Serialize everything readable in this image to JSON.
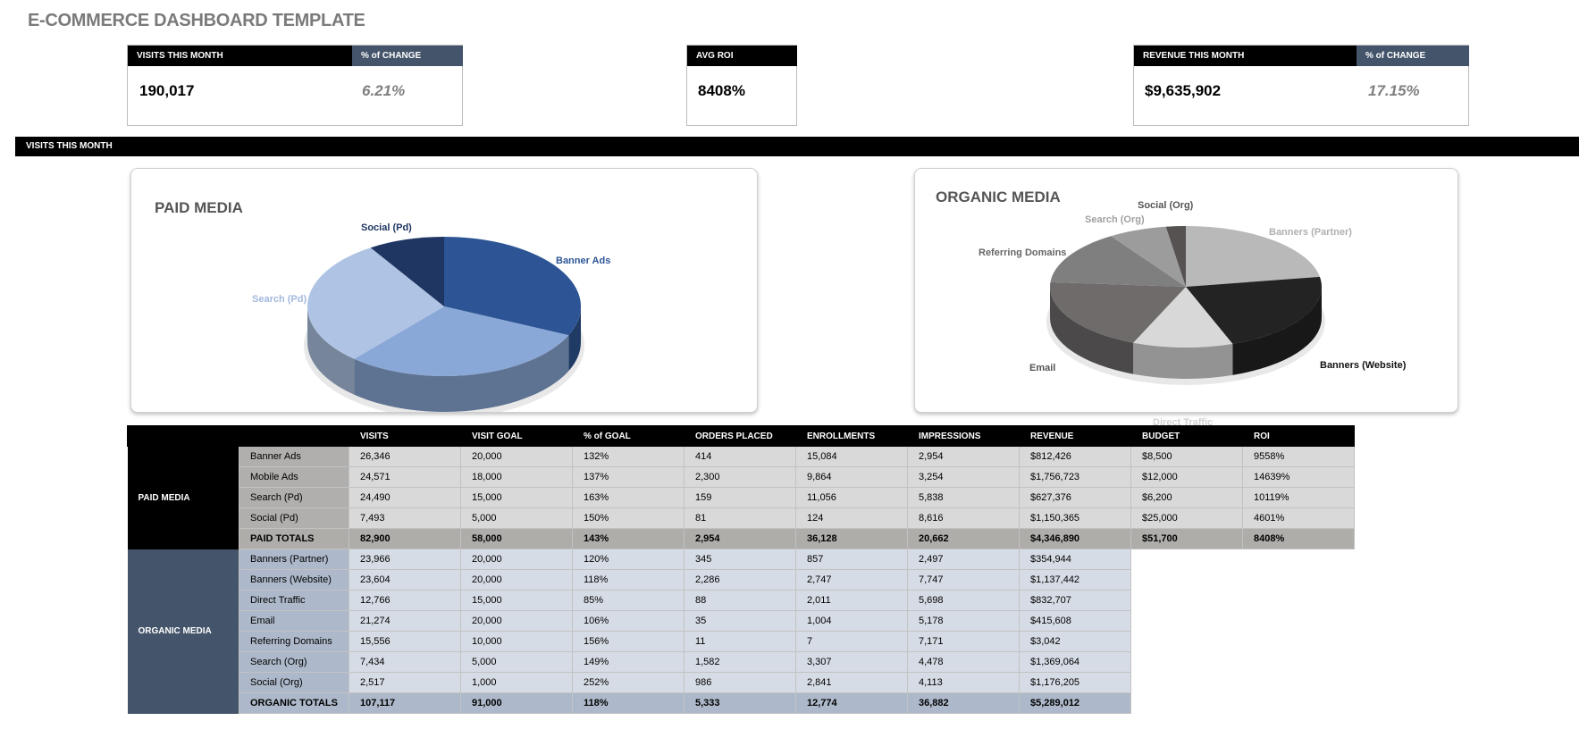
{
  "title": "E-COMMERCE DASHBOARD TEMPLATE",
  "kpis": {
    "visits": {
      "label": "VISITS THIS MONTH",
      "value": "190,017",
      "change_label": "% of CHANGE",
      "change": "6.21%"
    },
    "roi": {
      "label": "AVG ROI",
      "value": "8408%"
    },
    "revenue": {
      "label": "REVENUE THIS MONTH",
      "value": "$9,635,902",
      "change_label": "% of CHANGE",
      "change": "17.15%"
    }
  },
  "section_bar": "VISITS THIS MONTH",
  "colors": {
    "black": "#000000",
    "slate": "#44546a",
    "paid_cell": "#d9d9d9",
    "paid_sub": "#b0afad",
    "org_cell": "#d6dce5",
    "org_sub": "#adb9ca"
  },
  "chart_data": [
    {
      "type": "pie",
      "title": "PAID MEDIA",
      "categories": [
        "Banner Ads",
        "Mobile Ads",
        "Search (Pd)",
        "Social (Pd)"
      ],
      "values": [
        26346,
        24571,
        24490,
        7493
      ],
      "colors": [
        "#2d5595",
        "#8aa8d7",
        "#afc4e4",
        "#1f3562"
      ]
    },
    {
      "type": "pie",
      "title": "ORGANIC MEDIA",
      "categories": [
        "Banners (Partner)",
        "Banners (Website)",
        "Direct Traffic",
        "Email",
        "Referring Domains",
        "Search (Org)",
        "Social (Org)"
      ],
      "values": [
        23966,
        23604,
        12766,
        21274,
        15556,
        7434,
        2517
      ],
      "colors": [
        "#b9b9b9",
        "#232323",
        "#d8d8d8",
        "#6f6b6b",
        "#7f7f7f",
        "#9c9c9c",
        "#575252"
      ]
    }
  ],
  "table": {
    "headers": [
      "VISITS",
      "VISIT GOAL",
      "% of GOAL",
      "ORDERS PLACED",
      "ENROLLMENTS",
      "IMPRESSIONS",
      "REVENUE",
      "BUDGET",
      "ROI"
    ],
    "groups": [
      {
        "label": "PAID MEDIA",
        "rows": [
          [
            "Banner Ads",
            "26,346",
            "20,000",
            "132%",
            "414",
            "15,084",
            "2,954",
            "$812,426",
            "$8,500",
            "9558%"
          ],
          [
            "Mobile Ads",
            "24,571",
            "18,000",
            "137%",
            "2,300",
            "9,864",
            "3,254",
            "$1,756,723",
            "$12,000",
            "14639%"
          ],
          [
            "Search (Pd)",
            "24,490",
            "15,000",
            "163%",
            "159",
            "11,056",
            "5,838",
            "$627,376",
            "$6,200",
            "10119%"
          ],
          [
            "Social (Pd)",
            "7,493",
            "5,000",
            "150%",
            "81",
            "124",
            "8,616",
            "$1,150,365",
            "$25,000",
            "4601%"
          ]
        ],
        "total": [
          "PAID TOTALS",
          "82,900",
          "58,000",
          "143%",
          "2,954",
          "36,128",
          "20,662",
          "$4,346,890",
          "$51,700",
          "8408%"
        ]
      },
      {
        "label": "ORGANIC MEDIA",
        "rows": [
          [
            "Banners (Partner)",
            "23,966",
            "20,000",
            "120%",
            "345",
            "857",
            "2,497",
            "$354,944"
          ],
          [
            "Banners (Website)",
            "23,604",
            "20,000",
            "118%",
            "2,286",
            "2,747",
            "7,747",
            "$1,137,442"
          ],
          [
            "Direct Traffic",
            "12,766",
            "15,000",
            "85%",
            "88",
            "2,011",
            "5,698",
            "$832,707"
          ],
          [
            "Email",
            "21,274",
            "20,000",
            "106%",
            "35",
            "1,004",
            "5,178",
            "$415,608"
          ],
          [
            "Referring Domains",
            "15,556",
            "10,000",
            "156%",
            "11",
            "7",
            "7,171",
            "$3,042"
          ],
          [
            "Search (Org)",
            "7,434",
            "5,000",
            "149%",
            "1,582",
            "3,307",
            "4,478",
            "$1,369,064"
          ],
          [
            "Social (Org)",
            "2,517",
            "1,000",
            "252%",
            "986",
            "2,841",
            "4,113",
            "$1,176,205"
          ]
        ],
        "total": [
          "ORGANIC TOTALS",
          "107,117",
          "91,000",
          "118%",
          "5,333",
          "12,774",
          "36,882",
          "$5,289,012"
        ]
      }
    ]
  }
}
